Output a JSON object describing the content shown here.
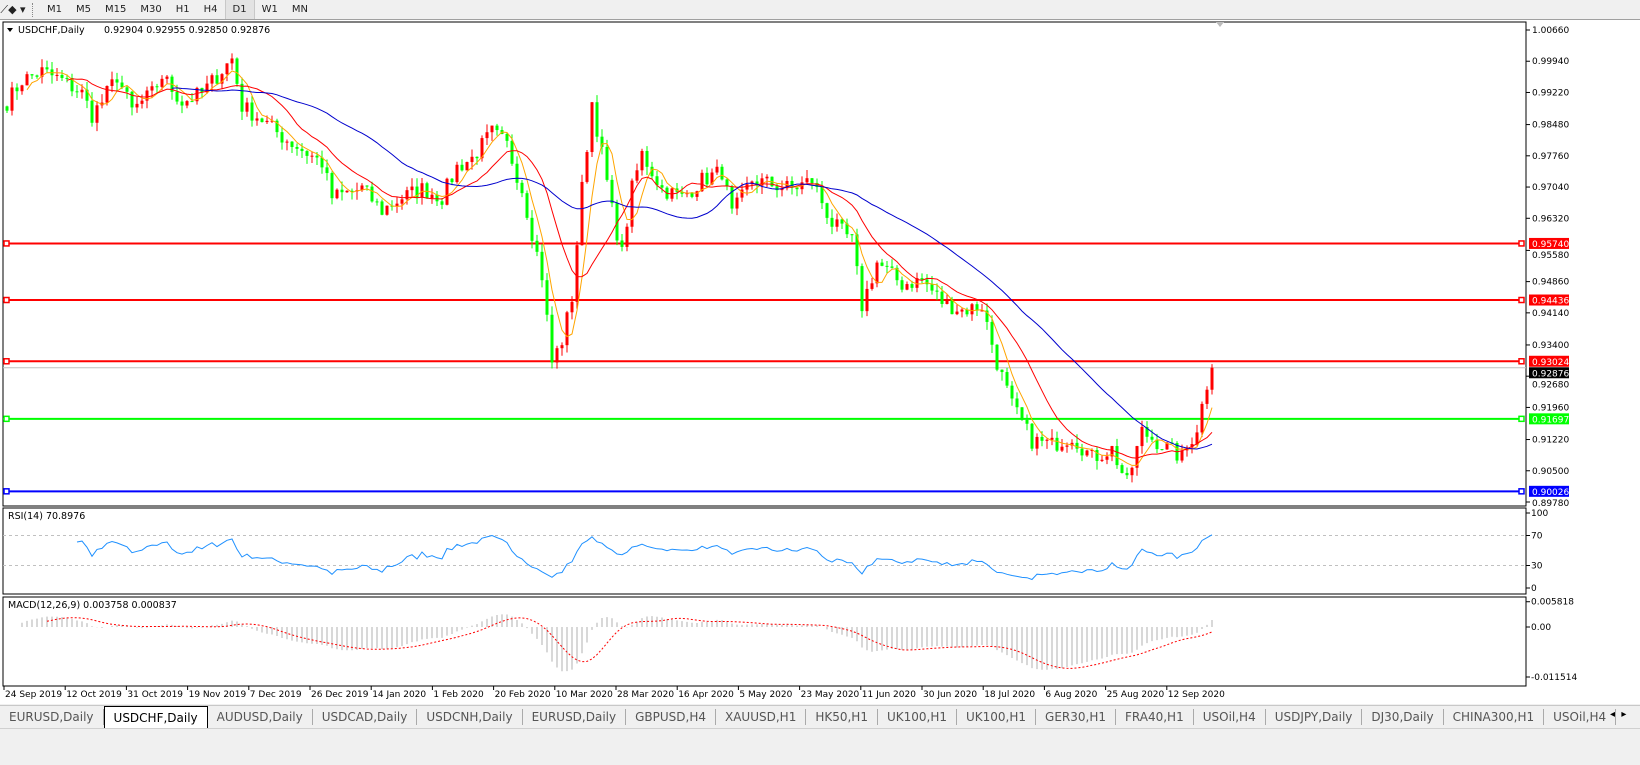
{
  "toolbar": {
    "icon": "line-tools-icon",
    "timeframes": [
      "M1",
      "M5",
      "M15",
      "M30",
      "H1",
      "H4",
      "D1",
      "W1",
      "MN"
    ],
    "active_timeframe": "D1"
  },
  "chart": {
    "title": "USDCHF,Daily",
    "ohlc": "0.92904 0.92955 0.92850 0.92876",
    "price_ticks": [
      "1.00660",
      "0.99940",
      "0.99220",
      "0.98480",
      "0.97760",
      "0.97040",
      "0.96320",
      "0.95580",
      "0.94860",
      "0.94140",
      "0.93400",
      "0.92680",
      "0.91960",
      "0.91220",
      "0.90500",
      "0.89780"
    ],
    "current_price": "0.92876",
    "hlines": [
      {
        "label": "0.95740",
        "color": "#ff0000"
      },
      {
        "label": "0.94436",
        "color": "#ff0000"
      },
      {
        "label": "0.93024",
        "color": "#ff0000"
      },
      {
        "label": "0.91697",
        "color": "#00ff00"
      },
      {
        "label": "0.90026",
        "color": "#0000ff"
      }
    ],
    "colors": {
      "bull": "#ff0000",
      "bear": "#00ff00",
      "ma_fast": "#ffa500",
      "ma_mid": "#ff0000",
      "ma_slow": "#0000cd",
      "rsi": "#1e90ff",
      "macd_hist": "#b0b0b0",
      "macd_signal": "#ff0000"
    },
    "date_labels": [
      "24 Sep 2019",
      "12 Oct 2019",
      "31 Oct 2019",
      "19 Nov 2019",
      "7 Dec 2019",
      "26 Dec 2019",
      "14 Jan 2020",
      "1 Feb 2020",
      "20 Feb 2020",
      "10 Mar 2020",
      "28 Mar 2020",
      "16 Apr 2020",
      "5 May 2020",
      "23 May 2020",
      "11 Jun 2020",
      "30 Jun 2020",
      "18 Jul 2020",
      "6 Aug 2020",
      "25 Aug 2020",
      "12 Sep 2020"
    ]
  },
  "rsi": {
    "label": "RSI(14) 70.8976",
    "ticks": [
      "100",
      "70",
      "30",
      "0"
    ]
  },
  "macd": {
    "label": "MACD(12,26,9) 0.003758 0.000837",
    "ticks": [
      "0.005818",
      "0.00",
      "-0.011514"
    ]
  },
  "chart_data": {
    "type": "candlestick",
    "symbol": "USDCHF",
    "timeframe": "Daily",
    "ylim": [
      0.8978,
      1.0066
    ],
    "close_path": [
      [
        0,
        0.99
      ],
      [
        3,
        0.995
      ],
      [
        7,
        0.997
      ],
      [
        11,
        0.995
      ],
      [
        15,
        0.992
      ],
      [
        17,
        0.987
      ],
      [
        19,
        0.99
      ],
      [
        22,
        0.996
      ],
      [
        25,
        0.988
      ],
      [
        29,
        0.992
      ],
      [
        31,
        0.996
      ],
      [
        35,
        0.99
      ],
      [
        39,
        0.992
      ],
      [
        42,
        0.996
      ],
      [
        45,
        1.0
      ],
      [
        47,
        0.989
      ],
      [
        51,
        0.986
      ],
      [
        55,
        0.982
      ],
      [
        59,
        0.979
      ],
      [
        63,
        0.976
      ],
      [
        65,
        0.968
      ],
      [
        68,
        0.969
      ],
      [
        71,
        0.97
      ],
      [
        75,
        0.965
      ],
      [
        79,
        0.968
      ],
      [
        83,
        0.97
      ],
      [
        87,
        0.968
      ],
      [
        90,
        0.975
      ],
      [
        93,
        0.977
      ],
      [
        97,
        0.983
      ],
      [
        100,
        0.98
      ],
      [
        103,
        0.97
      ],
      [
        105,
        0.96
      ],
      [
        107,
        0.95
      ],
      [
        109,
        0.93
      ],
      [
        111,
        0.935
      ],
      [
        113,
        0.945
      ],
      [
        115,
        0.97
      ],
      [
        117,
        0.99
      ],
      [
        119,
        0.978
      ],
      [
        121,
        0.965
      ],
      [
        123,
        0.955
      ],
      [
        125,
        0.97
      ],
      [
        127,
        0.978
      ],
      [
        131,
        0.97
      ],
      [
        135,
        0.968
      ],
      [
        139,
        0.972
      ],
      [
        143,
        0.974
      ],
      [
        145,
        0.964
      ],
      [
        149,
        0.972
      ],
      [
        153,
        0.971
      ],
      [
        157,
        0.97
      ],
      [
        161,
        0.972
      ],
      [
        165,
        0.962
      ],
      [
        169,
        0.958
      ],
      [
        171,
        0.943
      ],
      [
        174,
        0.953
      ],
      [
        179,
        0.948
      ],
      [
        183,
        0.949
      ],
      [
        187,
        0.944
      ],
      [
        191,
        0.942
      ],
      [
        195,
        0.943
      ],
      [
        198,
        0.93
      ],
      [
        201,
        0.92
      ],
      [
        205,
        0.912
      ],
      [
        209,
        0.911
      ],
      [
        213,
        0.913
      ],
      [
        217,
        0.908
      ],
      [
        221,
        0.91
      ],
      [
        224,
        0.902
      ],
      [
        227,
        0.914
      ],
      [
        231,
        0.911
      ],
      [
        235,
        0.908
      ],
      [
        238,
        0.915
      ],
      [
        240,
        0.925
      ],
      [
        241,
        0.92876
      ]
    ]
  },
  "tabs": {
    "items": [
      "EURUSD,Daily",
      "USDCHF,Daily",
      "AUDUSD,Daily",
      "USDCAD,Daily",
      "USDCNH,Daily",
      "EURUSD,Daily",
      "GBPUSD,H4",
      "XAUUSD,H1",
      "HK50,H1",
      "UK100,H1",
      "UK100,H1",
      "GER30,H1",
      "FRA40,H1",
      "USOil,H4",
      "USDJPY,Daily",
      "DJ30,Daily",
      "CHINA300,H1",
      "USOil,H4"
    ],
    "active": 1
  }
}
